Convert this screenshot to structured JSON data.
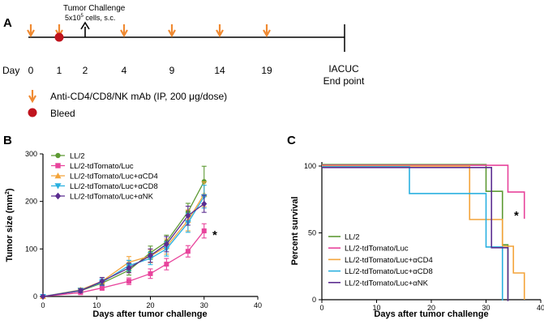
{
  "panelA": {
    "label": "A",
    "challenge_title": "Tumor Challenge",
    "challenge_base": "5x10",
    "challenge_exp": "5",
    "challenge_suffix": " cells, s.c.",
    "day_label": "Day",
    "days": [
      "0",
      "1",
      "2",
      "4",
      "9",
      "14",
      "19"
    ],
    "endpoint_line1": "IACUC",
    "endpoint_line2": "End point",
    "legend_mab_text": "Anti-CD4/CD8/NK mAb (IP,  200 μg/dose)",
    "legend_bleed_text": "Bleed",
    "colors": {
      "arrow": "#f08a32",
      "bleed": "#c0141e"
    }
  },
  "chart_data": [
    {
      "panel": "B",
      "type": "line",
      "title": "",
      "xlabel": "Days after tumor challenge",
      "ylabel_main": "Tumor size (mm",
      "ylabel_sup": "2",
      "ylabel_end": ")",
      "xlim": [
        0,
        40
      ],
      "ylim": [
        0,
        300
      ],
      "xticks": [
        "0",
        "10",
        "20",
        "30",
        "40"
      ],
      "yticks": [
        "0",
        "100",
        "200",
        "300"
      ],
      "significance": "*",
      "x": [
        0,
        7,
        11,
        16,
        20,
        23,
        27,
        30
      ],
      "series": [
        {
          "name": "LL/2",
          "color": "#5e9a34",
          "marker": "circle",
          "values": [
            0,
            12,
            28,
            55,
            92,
            115,
            178,
            242
          ],
          "errors": [
            0,
            3,
            6,
            10,
            14,
            14,
            18,
            32
          ]
        },
        {
          "name": "LL/2-tdTomato/Luc",
          "color": "#e8449c",
          "marker": "square",
          "values": [
            0,
            8,
            18,
            32,
            48,
            68,
            95,
            138
          ],
          "errors": [
            0,
            3,
            5,
            7,
            10,
            12,
            12,
            15
          ]
        },
        {
          "name": "LL/2-tdTomato/Luc+αCD4",
          "color": "#f4a43a",
          "marker": "triangle-up",
          "values": [
            0,
            14,
            32,
            72,
            85,
            105,
            160,
            215
          ],
          "errors": [
            0,
            4,
            8,
            12,
            14,
            16,
            22,
            26
          ]
        },
        {
          "name": "LL/2-tdTomato/Luc+αCD8",
          "color": "#2ab0e0",
          "marker": "triangle-down",
          "values": [
            0,
            13,
            30,
            65,
            80,
            100,
            155,
            210
          ],
          "errors": [
            0,
            4,
            7,
            11,
            13,
            15,
            20,
            24
          ]
        },
        {
          "name": "LL/2-tdTomato/Luc+αNK",
          "color": "#5b2d90",
          "marker": "diamond",
          "values": [
            0,
            12,
            32,
            60,
            86,
            110,
            170,
            195
          ],
          "errors": [
            0,
            4,
            8,
            10,
            14,
            16,
            20,
            18
          ]
        }
      ]
    },
    {
      "panel": "C",
      "type": "line",
      "title": "",
      "xlabel": "Days after tumor challenge",
      "ylabel": "Percent survival",
      "xlim": [
        0,
        40
      ],
      "ylim": [
        0,
        100
      ],
      "xticks": [
        "0",
        "10",
        "20",
        "30",
        "40"
      ],
      "yticks": [
        "0",
        "50",
        "100"
      ],
      "significance": "*",
      "series": [
        {
          "name": "LL/2",
          "color": "#5e9a34",
          "steps": [
            [
              0,
              100
            ],
            [
              30,
              100
            ],
            [
              30,
              80
            ],
            [
              33,
              80
            ],
            [
              33,
              40
            ],
            [
              34,
              40
            ],
            [
              34,
              0
            ]
          ]
        },
        {
          "name": "LL/2-tdTomato/Luc",
          "color": "#e8449c",
          "steps": [
            [
              0,
              100
            ],
            [
              34,
              100
            ],
            [
              34,
              80
            ],
            [
              37,
              80
            ],
            [
              37,
              60
            ]
          ]
        },
        {
          "name": "LL/2-tdTomato/Luc+αCD4",
          "color": "#f4a43a",
          "steps": [
            [
              0,
              100
            ],
            [
              27,
              100
            ],
            [
              27,
              60
            ],
            [
              33,
              60
            ],
            [
              33,
              40
            ],
            [
              35,
              40
            ],
            [
              35,
              20
            ],
            [
              37,
              20
            ],
            [
              37,
              0
            ]
          ]
        },
        {
          "name": "LL/2-tdTomato/Luc+αCD8",
          "color": "#2ab0e0",
          "steps": [
            [
              0,
              100
            ],
            [
              16,
              100
            ],
            [
              16,
              80
            ],
            [
              30,
              80
            ],
            [
              30,
              40
            ],
            [
              33,
              40
            ],
            [
              33,
              0
            ]
          ]
        },
        {
          "name": "LL/2-tdTomato/Luc+αNK",
          "color": "#5b2d90",
          "steps": [
            [
              0,
              100
            ],
            [
              31,
              100
            ],
            [
              31,
              40
            ],
            [
              34,
              40
            ],
            [
              34,
              0
            ]
          ]
        }
      ]
    }
  ]
}
